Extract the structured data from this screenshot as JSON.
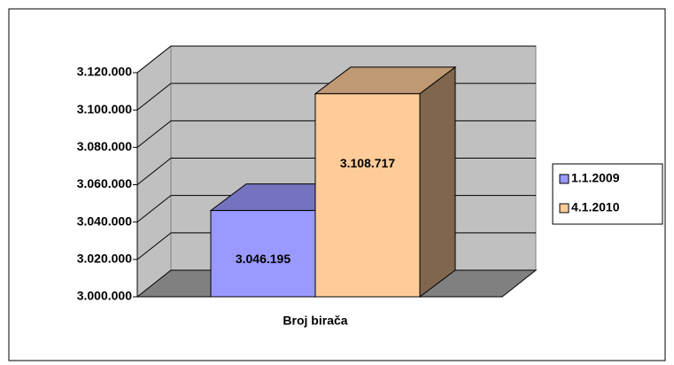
{
  "chart_data": {
    "type": "bar3d",
    "categories": [
      "Broj birača"
    ],
    "series": [
      {
        "name": "1.1.2009",
        "color": "#9999ff",
        "values": [
          3046195
        ],
        "value_labels": [
          "3.046.195"
        ]
      },
      {
        "name": "4.1.2010",
        "color": "#ffcc99",
        "values": [
          3108717
        ],
        "value_labels": [
          "3.108.717"
        ]
      }
    ],
    "ylim": [
      3000000,
      3120000
    ],
    "yticks": [
      {
        "value": 3000000,
        "label": "3.000.000"
      },
      {
        "value": 3020000,
        "label": "3.020.000"
      },
      {
        "value": 3040000,
        "label": "3.040.000"
      },
      {
        "value": 3060000,
        "label": "3.060.000"
      },
      {
        "value": 3080000,
        "label": "3.080.000"
      },
      {
        "value": 3100000,
        "label": "3.100.000"
      },
      {
        "value": 3120000,
        "label": "3.120.000"
      }
    ],
    "grid": true,
    "legend": "right"
  }
}
